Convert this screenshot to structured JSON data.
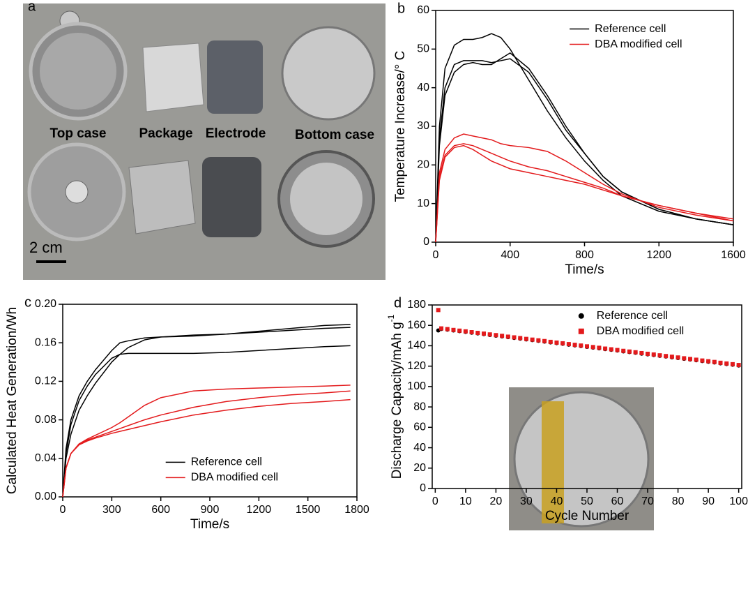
{
  "photo": {
    "panel": "a",
    "captions": [
      "Top case",
      "Package",
      "Electrode",
      "Bottom case"
    ],
    "scale_bar": "2 cm"
  },
  "chart_data": [
    {
      "type": "line",
      "panel": "b",
      "x_label": "Time/s",
      "y_label": "Temperature Increase/° C",
      "x": [
        0,
        20,
        50,
        100,
        150,
        200,
        250,
        300,
        350,
        400,
        500,
        600,
        700,
        800,
        900,
        1000,
        1200,
        1400,
        1600
      ],
      "series": [
        {
          "name": "Reference cell",
          "color": "#000000",
          "values": [
            0,
            30,
            45,
            51,
            52.5,
            52.5,
            53,
            54,
            53,
            50,
            42,
            34,
            27,
            21,
            16,
            12,
            8,
            6,
            4.5
          ]
        },
        {
          "name": "Reference cell",
          "color": "#000000",
          "values": [
            0,
            25,
            38,
            44,
            46,
            46.5,
            46,
            46,
            47.5,
            49,
            45,
            38,
            30,
            23,
            17,
            13,
            8.5,
            6,
            4.5
          ]
        },
        {
          "name": "Reference cell",
          "color": "#000000",
          "values": [
            0,
            27,
            40,
            46,
            47,
            47,
            47,
            46.5,
            47,
            47.5,
            44,
            37,
            29,
            23,
            17,
            13,
            8.5,
            6,
            4.5
          ]
        },
        {
          "name": "DBA modified cell",
          "color": "#e31a1c",
          "values": [
            0,
            18,
            24,
            27,
            28,
            27.5,
            27,
            26.5,
            25.5,
            25,
            24.5,
            23.5,
            21,
            18,
            15,
            12.5,
            9,
            7,
            5.5
          ]
        },
        {
          "name": "DBA modified cell",
          "color": "#e31a1c",
          "values": [
            0,
            17,
            22.5,
            25,
            25.5,
            25,
            24,
            23,
            22,
            21,
            19.5,
            18.5,
            17,
            15.5,
            14,
            12,
            9.5,
            7.5,
            6
          ]
        },
        {
          "name": "DBA modified cell",
          "color": "#e31a1c",
          "values": [
            0,
            16,
            22,
            24.5,
            25,
            24,
            22.5,
            21,
            20,
            19,
            18,
            17,
            16,
            15,
            13.5,
            12,
            9.5,
            7.5,
            5.5
          ]
        }
      ],
      "xlim": [
        0,
        1600
      ],
      "xticks": [
        0,
        400,
        800,
        1200,
        1600
      ],
      "ylim": [
        0,
        60
      ],
      "yticks": [
        0,
        10,
        20,
        30,
        40,
        50,
        60
      ],
      "legend": "upper right"
    },
    {
      "type": "line",
      "panel": "c",
      "x_label": "Time/s",
      "y_label": "Calculated Heat Generation/Wh",
      "x": [
        0,
        20,
        50,
        100,
        150,
        200,
        300,
        350,
        400,
        500,
        600,
        800,
        1000,
        1200,
        1400,
        1600,
        1760
      ],
      "series": [
        {
          "name": "Reference cell",
          "color": "#000000",
          "values": [
            0,
            0.05,
            0.08,
            0.105,
            0.12,
            0.132,
            0.152,
            0.16,
            0.162,
            0.165,
            0.166,
            0.167,
            0.169,
            0.172,
            0.175,
            0.178,
            0.179
          ]
        },
        {
          "name": "Reference cell",
          "color": "#000000",
          "values": [
            0,
            0.04,
            0.065,
            0.09,
            0.105,
            0.118,
            0.14,
            0.148,
            0.155,
            0.163,
            0.166,
            0.168,
            0.169,
            0.171,
            0.173,
            0.175,
            0.176
          ]
        },
        {
          "name": "Reference cell",
          "color": "#000000",
          "values": [
            0,
            0.045,
            0.075,
            0.1,
            0.115,
            0.127,
            0.144,
            0.148,
            0.149,
            0.149,
            0.149,
            0.149,
            0.15,
            0.152,
            0.154,
            0.156,
            0.157
          ]
        },
        {
          "name": "DBA modified cell",
          "color": "#e31a1c",
          "values": [
            0,
            0.03,
            0.045,
            0.055,
            0.06,
            0.064,
            0.072,
            0.077,
            0.083,
            0.095,
            0.103,
            0.11,
            0.112,
            0.113,
            0.114,
            0.115,
            0.116
          ]
        },
        {
          "name": "DBA modified cell",
          "color": "#e31a1c",
          "values": [
            0,
            0.03,
            0.045,
            0.055,
            0.059,
            0.062,
            0.068,
            0.071,
            0.074,
            0.08,
            0.085,
            0.093,
            0.099,
            0.103,
            0.106,
            0.108,
            0.11
          ]
        },
        {
          "name": "DBA modified cell",
          "color": "#e31a1c",
          "values": [
            0,
            0.03,
            0.045,
            0.054,
            0.058,
            0.061,
            0.066,
            0.068,
            0.07,
            0.074,
            0.078,
            0.085,
            0.09,
            0.094,
            0.097,
            0.099,
            0.101
          ]
        }
      ],
      "xlim": [
        0,
        1800
      ],
      "xticks": [
        0,
        300,
        600,
        900,
        1200,
        1500,
        1800
      ],
      "ylim": [
        0,
        0.2
      ],
      "yticks": [
        {
          "value": 0,
          "label": "0.00"
        },
        0.04,
        0.08,
        0.12,
        0.16,
        {
          "value": 0.2,
          "label": "0.20"
        }
      ],
      "legend": "lower center"
    },
    {
      "type": "scatter",
      "panel": "d",
      "x_label": "Cycle Number",
      "y_label": "Discharge Capacity/mAh g",
      "y_label_sup": "-1",
      "x": [
        1,
        2,
        4,
        6,
        8,
        10,
        12,
        14,
        16,
        18,
        20,
        22,
        24,
        26,
        28,
        30,
        32,
        34,
        36,
        38,
        40,
        42,
        44,
        46,
        48,
        50,
        52,
        54,
        56,
        58,
        60,
        62,
        64,
        66,
        68,
        70,
        72,
        74,
        76,
        78,
        80,
        82,
        84,
        86,
        88,
        90,
        92,
        94,
        96,
        98,
        100
      ],
      "series": [
        {
          "name": "Reference cell",
          "color": "#000000",
          "marker": "circle",
          "values": [
            155,
            156.5,
            155.8,
            155,
            154.3,
            153.6,
            152.8,
            152.1,
            151.4,
            150.6,
            149.9,
            149.2,
            148.4,
            147.7,
            147,
            146.2,
            145.5,
            144.8,
            144.1,
            143.3,
            142.6,
            141.9,
            141.1,
            140.4,
            139.7,
            138.9,
            138.2,
            137.5,
            136.7,
            136,
            135.3,
            134.5,
            133.8,
            133.1,
            132.3,
            131.6,
            130.9,
            130.1,
            129.4,
            128.7,
            128,
            127.2,
            126.5,
            125.8,
            125,
            124.3,
            123.6,
            122.8,
            122.1,
            121.4,
            120.6
          ]
        },
        {
          "name": "DBA modified cell",
          "color": "#e31a1c",
          "marker": "square",
          "values": [
            175,
            157,
            156.3,
            155.5,
            154.8,
            154.1,
            153.3,
            152.6,
            151.9,
            151.1,
            150.4,
            149.7,
            148.9,
            148.2,
            147.5,
            146.7,
            146,
            145.3,
            144.6,
            143.8,
            143.1,
            142.4,
            141.6,
            140.9,
            140.2,
            139.4,
            138.7,
            138,
            137.2,
            136.5,
            135.8,
            135,
            134.3,
            133.6,
            132.8,
            132.1,
            131.4,
            130.6,
            129.9,
            129.2,
            128.5,
            127.7,
            127,
            126.3,
            125.5,
            124.8,
            124.1,
            123.3,
            122.6,
            121.9,
            121.1
          ]
        }
      ],
      "xlim": [
        -1,
        101
      ],
      "xticks": [
        0,
        10,
        20,
        30,
        40,
        50,
        60,
        70,
        80,
        90,
        100
      ],
      "ylim": [
        0,
        180
      ],
      "yticks": [
        0,
        20,
        40,
        60,
        80,
        100,
        120,
        140,
        160,
        180
      ],
      "legend": "upper center"
    }
  ]
}
